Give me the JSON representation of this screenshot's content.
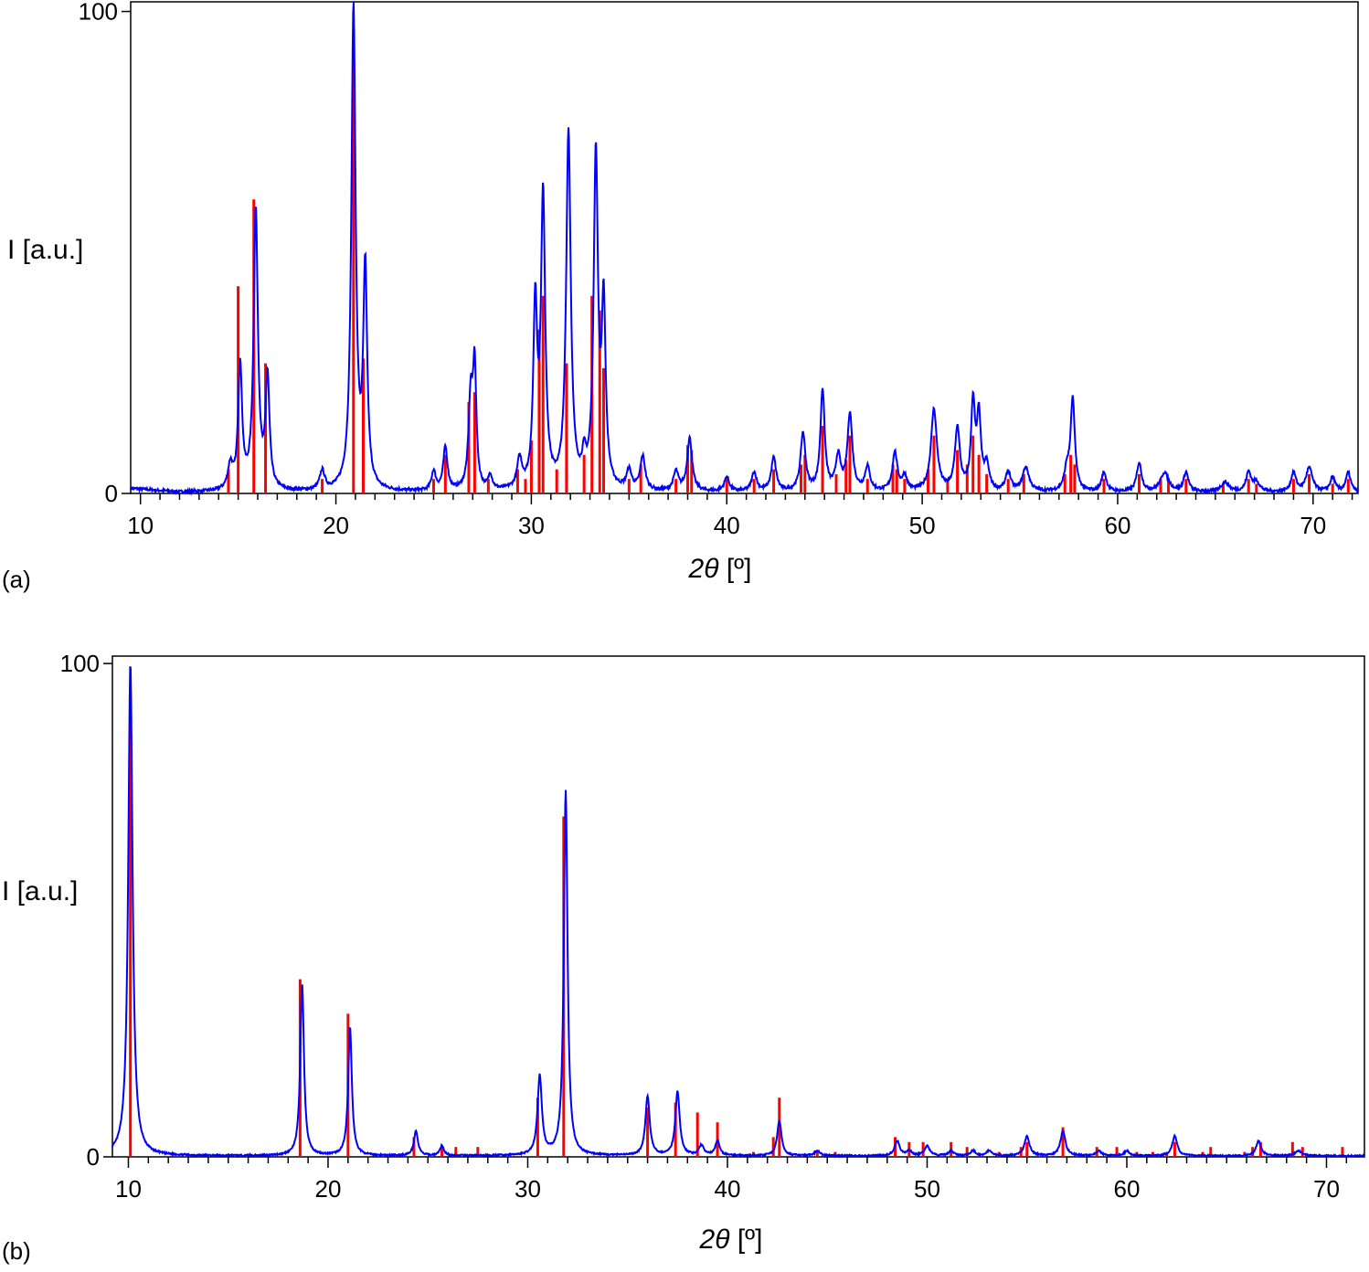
{
  "chart_data": [
    {
      "type": "line",
      "panel_label": "(a)",
      "xlabel_sym": "2θ",
      "xlabel_unit": " [º]",
      "ylabel": "I [a.u.]",
      "xlim": [
        9.5,
        72.3
      ],
      "ylim": [
        0,
        102
      ],
      "xticks": [
        10,
        20,
        30,
        40,
        50,
        60,
        70
      ],
      "yticks": [
        0,
        100
      ],
      "grid": false,
      "series": [
        {
          "kind": "profile",
          "color": "#0000ff",
          "peaks": [
            [
              14.6,
              5,
              0.15
            ],
            [
              15.1,
              26,
              0.12
            ],
            [
              15.9,
              58,
              0.13
            ],
            [
              16.5,
              23,
              0.12
            ],
            [
              19.3,
              4,
              0.15
            ],
            [
              20.9,
              100,
              0.13
            ],
            [
              21.5,
              45,
              0.12
            ],
            [
              25.0,
              4,
              0.13
            ],
            [
              25.6,
              9,
              0.13
            ],
            [
              26.9,
              19,
              0.13
            ],
            [
              27.1,
              24,
              0.1
            ],
            [
              27.9,
              3,
              0.12
            ],
            [
              29.4,
              6,
              0.15
            ],
            [
              30.2,
              37,
              0.12
            ],
            [
              30.6,
              60,
              0.13
            ],
            [
              31.9,
              74,
              0.14
            ],
            [
              32.7,
              5,
              0.12
            ],
            [
              33.3,
              69,
              0.13
            ],
            [
              33.7,
              37,
              0.12
            ],
            [
              35.0,
              4,
              0.15
            ],
            [
              35.7,
              7,
              0.15
            ],
            [
              37.4,
              4,
              0.15
            ],
            [
              38.1,
              11,
              0.15
            ],
            [
              40.0,
              3,
              0.15
            ],
            [
              41.4,
              4,
              0.15
            ],
            [
              42.4,
              7,
              0.15
            ],
            [
              43.9,
              12,
              0.15
            ],
            [
              44.9,
              21,
              0.13
            ],
            [
              45.7,
              7,
              0.15
            ],
            [
              46.3,
              16,
              0.15
            ],
            [
              47.2,
              5,
              0.15
            ],
            [
              48.6,
              8,
              0.15
            ],
            [
              49.1,
              3,
              0.15
            ],
            [
              50.6,
              17,
              0.18
            ],
            [
              51.8,
              13,
              0.15
            ],
            [
              52.6,
              18,
              0.12
            ],
            [
              52.9,
              15,
              0.12
            ],
            [
              53.3,
              5,
              0.15
            ],
            [
              54.4,
              4,
              0.15
            ],
            [
              55.3,
              5,
              0.2
            ],
            [
              57.4,
              4,
              0.15
            ],
            [
              57.7,
              19,
              0.13
            ],
            [
              59.3,
              4,
              0.15
            ],
            [
              61.1,
              6,
              0.15
            ],
            [
              62.4,
              4,
              0.25
            ],
            [
              63.5,
              4,
              0.15
            ],
            [
              65.5,
              2,
              0.25
            ],
            [
              66.7,
              4,
              0.15
            ],
            [
              67.1,
              2,
              0.2
            ],
            [
              69.0,
              4,
              0.15
            ],
            [
              69.8,
              5,
              0.2
            ],
            [
              71.0,
              3,
              0.15
            ],
            [
              71.8,
              4,
              0.15
            ]
          ]
        },
        {
          "kind": "sticks",
          "color": "#ff0000",
          "sticks": [
            [
              14.5,
              5
            ],
            [
              15.0,
              43
            ],
            [
              15.8,
              61
            ],
            [
              16.4,
              27
            ],
            [
              19.3,
              3
            ],
            [
              20.9,
              92
            ],
            [
              21.4,
              28
            ],
            [
              25.0,
              3
            ],
            [
              25.6,
              8
            ],
            [
              26.8,
              19
            ],
            [
              27.1,
              21
            ],
            [
              27.8,
              3
            ],
            [
              29.3,
              5
            ],
            [
              29.7,
              3
            ],
            [
              30.0,
              11
            ],
            [
              30.4,
              34
            ],
            [
              30.6,
              41
            ],
            [
              31.3,
              5
            ],
            [
              31.8,
              27
            ],
            [
              32.7,
              8
            ],
            [
              33.1,
              41
            ],
            [
              33.5,
              38
            ],
            [
              33.7,
              26
            ],
            [
              35.0,
              3
            ],
            [
              35.6,
              6
            ],
            [
              37.4,
              3
            ],
            [
              38.0,
              10
            ],
            [
              38.2,
              9
            ],
            [
              40.0,
              3
            ],
            [
              41.4,
              3
            ],
            [
              42.4,
              5
            ],
            [
              43.8,
              6
            ],
            [
              44.0,
              8
            ],
            [
              44.9,
              14
            ],
            [
              45.6,
              4
            ],
            [
              46.1,
              7
            ],
            [
              46.3,
              12
            ],
            [
              47.2,
              3
            ],
            [
              48.5,
              6
            ],
            [
              48.7,
              5
            ],
            [
              49.1,
              3
            ],
            [
              50.3,
              5
            ],
            [
              50.6,
              12
            ],
            [
              51.3,
              3
            ],
            [
              51.8,
              9
            ],
            [
              52.3,
              6
            ],
            [
              52.6,
              12
            ],
            [
              52.9,
              8
            ],
            [
              53.3,
              4
            ],
            [
              54.4,
              3
            ],
            [
              55.2,
              4
            ],
            [
              57.3,
              4
            ],
            [
              57.6,
              8
            ],
            [
              57.8,
              6
            ],
            [
              59.3,
              3
            ],
            [
              61.1,
              4
            ],
            [
              62.2,
              3
            ],
            [
              62.6,
              3
            ],
            [
              63.5,
              3
            ],
            [
              65.4,
              2
            ],
            [
              66.7,
              3
            ],
            [
              67.1,
              2
            ],
            [
              69.0,
              3
            ],
            [
              69.8,
              4
            ],
            [
              71.0,
              2
            ],
            [
              71.8,
              3
            ]
          ]
        }
      ]
    },
    {
      "type": "line",
      "panel_label": "(b)",
      "xlabel_sym": "2θ",
      "xlabel_unit": " [º]",
      "ylabel": "I [a.u.]",
      "xlim": [
        9.2,
        71.9
      ],
      "ylim": [
        0,
        101.5
      ],
      "xticks": [
        10,
        20,
        30,
        40,
        50,
        60,
        70
      ],
      "yticks": [
        0,
        100
      ],
      "grid": false,
      "series": [
        {
          "kind": "profile",
          "color": "#0000ff",
          "peaks": [
            [
              10.1,
              100,
              0.13
            ],
            [
              18.7,
              35,
              0.11
            ],
            [
              21.1,
              26,
              0.11
            ],
            [
              24.4,
              5,
              0.12
            ],
            [
              25.7,
              2,
              0.12
            ],
            [
              30.6,
              16,
              0.13
            ],
            [
              31.9,
              74,
              0.11
            ],
            [
              36.0,
              12,
              0.13
            ],
            [
              37.5,
              13,
              0.13
            ],
            [
              38.7,
              2,
              0.15
            ],
            [
              39.5,
              3,
              0.13
            ],
            [
              42.6,
              7,
              0.13
            ],
            [
              44.5,
              1,
              0.15
            ],
            [
              48.5,
              3,
              0.15
            ],
            [
              49.1,
              1,
              0.15
            ],
            [
              50.0,
              2,
              0.15
            ],
            [
              51.2,
              1,
              0.15
            ],
            [
              52.3,
              1,
              0.15
            ],
            [
              53.1,
              1,
              0.15
            ],
            [
              55.0,
              4,
              0.15
            ],
            [
              56.8,
              5,
              0.15
            ],
            [
              58.6,
              1,
              0.15
            ],
            [
              60.0,
              1,
              0.15
            ],
            [
              62.4,
              4,
              0.15
            ],
            [
              66.6,
              3,
              0.15
            ],
            [
              68.6,
              1,
              0.2
            ]
          ]
        },
        {
          "kind": "sticks",
          "color": "#ff0000",
          "sticks": [
            [
              10.1,
              94
            ],
            [
              18.6,
              36
            ],
            [
              21.0,
              29
            ],
            [
              24.3,
              4
            ],
            [
              25.7,
              2
            ],
            [
              26.4,
              2
            ],
            [
              27.5,
              2
            ],
            [
              30.5,
              12
            ],
            [
              31.8,
              69
            ],
            [
              36.0,
              10
            ],
            [
              37.4,
              11
            ],
            [
              38.5,
              9
            ],
            [
              39.5,
              7
            ],
            [
              41.3,
              1
            ],
            [
              42.3,
              4
            ],
            [
              42.6,
              12
            ],
            [
              44.5,
              1
            ],
            [
              45.4,
              1
            ],
            [
              48.4,
              4
            ],
            [
              49.1,
              3
            ],
            [
              49.8,
              3
            ],
            [
              51.2,
              3
            ],
            [
              52.0,
              2
            ],
            [
              53.6,
              1
            ],
            [
              54.7,
              2
            ],
            [
              55.0,
              3
            ],
            [
              56.8,
              6
            ],
            [
              58.5,
              2
            ],
            [
              59.5,
              2
            ],
            [
              60.5,
              1
            ],
            [
              61.3,
              1
            ],
            [
              62.0,
              1
            ],
            [
              62.4,
              3
            ],
            [
              63.8,
              1
            ],
            [
              64.2,
              2
            ],
            [
              65.9,
              1
            ],
            [
              66.3,
              2
            ],
            [
              66.7,
              3
            ],
            [
              68.3,
              3
            ],
            [
              68.8,
              2
            ],
            [
              70.8,
              2
            ]
          ]
        }
      ]
    }
  ]
}
